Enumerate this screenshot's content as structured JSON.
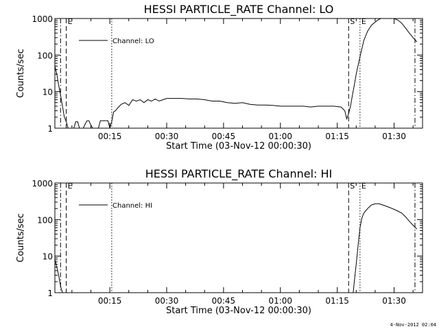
{
  "footer": {
    "timestamp": "4-Nov-2012 02:04"
  },
  "chart_data": [
    {
      "type": "line",
      "title": "HESSI PARTICLE_RATE Channel: LO",
      "xlabel": "Start Time (03-Nov-12 00:00:30)",
      "ylabel": "Counts/sec",
      "yscale": "log",
      "xlim": [
        0.5,
        97.5
      ],
      "ylim": [
        1,
        1000
      ],
      "x_ticks": [
        15,
        30,
        45,
        60,
        75,
        90
      ],
      "x_tick_labels": [
        "00:15",
        "00:30",
        "00:45",
        "01:00",
        "01:15",
        "01:30"
      ],
      "y_ticks": [
        1,
        10,
        100,
        1000
      ],
      "y_tick_labels": [
        "1",
        "10",
        "100",
        "1000"
      ],
      "legend": {
        "entries": [
          "Channel: LO"
        ],
        "position": "top-left"
      },
      "markers": [
        {
          "x": 2.0,
          "style": "dashdot",
          "label": ""
        },
        {
          "x": 3.5,
          "style": "dashed",
          "label": "E"
        },
        {
          "x": 15.5,
          "style": "dotted",
          "label": ""
        },
        {
          "x": 78.0,
          "style": "dashed",
          "label": "S"
        },
        {
          "x": 81.0,
          "style": "dotted",
          "label": "E"
        },
        {
          "x": 95.5,
          "style": "dashdot",
          "label": ""
        }
      ],
      "series": [
        {
          "name": "Channel: LO",
          "x": [
            0.5,
            1.0,
            1.5,
            2.0,
            2.5,
            3.0,
            3.5,
            4.0,
            4.5,
            5.0,
            5.5,
            6.0,
            6.5,
            7.0,
            7.5,
            8.0,
            8.5,
            9.0,
            9.5,
            10.0,
            10.5,
            11.0,
            11.5,
            12.0,
            12.5,
            13.0,
            13.5,
            14.0,
            14.5,
            15.0,
            15.5,
            16.0,
            16.5,
            17.0,
            18.0,
            19.0,
            20.0,
            21.0,
            22.0,
            23.0,
            24.0,
            25.0,
            26.0,
            27.0,
            28.0,
            29.0,
            30.0,
            32.0,
            34.0,
            36.0,
            38.0,
            40.0,
            42.0,
            44.0,
            46.0,
            48.0,
            50.0,
            52.0,
            54.0,
            56.0,
            58.0,
            60.0,
            62.0,
            64.0,
            66.0,
            68.0,
            70.0,
            72.0,
            74.0,
            76.0,
            77.0,
            77.5,
            78.0,
            78.5,
            79.0,
            79.5,
            80.0,
            81.0,
            82.0,
            83.0,
            84.0,
            85.0,
            86.0,
            87.0,
            88.0,
            89.0,
            90.0,
            91.0,
            92.0,
            93.0,
            94.0,
            95.0,
            96.0
          ],
          "values": [
            50,
            30,
            15,
            8,
            4,
            2,
            1.5,
            1,
            0.8,
            0.8,
            1,
            1.5,
            1.5,
            1,
            0.8,
            1,
            1.3,
            1.6,
            1.6,
            1.2,
            1,
            0.8,
            1,
            1,
            1.6,
            1.6,
            1.6,
            1.6,
            1.6,
            1,
            1.5,
            2.8,
            3,
            3.5,
            4.5,
            5,
            4.2,
            6,
            5.5,
            6,
            5,
            6,
            5.5,
            6.3,
            5.5,
            6,
            6.5,
            6.5,
            6.5,
            6.3,
            6.3,
            6,
            5.5,
            5.5,
            5,
            4.8,
            5,
            4.5,
            4.3,
            4.3,
            4.2,
            4,
            4,
            4,
            4,
            3.8,
            4,
            4,
            4,
            3.8,
            3,
            1.8,
            2.5,
            4,
            8,
            15,
            30,
            90,
            250,
            450,
            650,
            800,
            950,
            1050,
            1080,
            1050,
            1000,
            900,
            750,
            550,
            400,
            300,
            230
          ]
        }
      ]
    },
    {
      "type": "line",
      "title": "HESSI PARTICLE_RATE Channel: HI",
      "xlabel": "Start Time (03-Nov-12 00:00:30)",
      "ylabel": "Counts/sec",
      "yscale": "log",
      "xlim": [
        0.5,
        97.5
      ],
      "ylim": [
        1,
        1000
      ],
      "x_ticks": [
        15,
        30,
        45,
        60,
        75,
        90
      ],
      "x_tick_labels": [
        "00:15",
        "00:30",
        "00:45",
        "01:00",
        "01:15",
        "01:30"
      ],
      "y_ticks": [
        1,
        10,
        100,
        1000
      ],
      "y_tick_labels": [
        "1",
        "10",
        "100",
        "1000"
      ],
      "legend": {
        "entries": [
          "Channel: HI"
        ],
        "position": "top-left"
      },
      "markers": [
        {
          "x": 2.0,
          "style": "dashdot",
          "label": ""
        },
        {
          "x": 3.5,
          "style": "dashed",
          "label": "E"
        },
        {
          "x": 15.5,
          "style": "dotted",
          "label": ""
        },
        {
          "x": 78.0,
          "style": "dashed",
          "label": "S"
        },
        {
          "x": 81.0,
          "style": "dotted",
          "label": "E"
        },
        {
          "x": 95.5,
          "style": "dashdot",
          "label": ""
        }
      ],
      "series": [
        {
          "name": "Channel: HI",
          "x": [
            0.5,
            1.0,
            1.5,
            2.0,
            2.5,
            79.2,
            79.5,
            80.0,
            80.5,
            81.0,
            81.5,
            82.0,
            83.0,
            84.0,
            85.0,
            86.0,
            87.0,
            88.0,
            89.0,
            90.0,
            91.0,
            92.0,
            93.0,
            94.0,
            95.0,
            96.0
          ],
          "values": [
            8,
            5,
            3,
            1.5,
            1,
            1,
            2,
            6,
            20,
            60,
            110,
            150,
            200,
            250,
            270,
            270,
            250,
            230,
            210,
            190,
            170,
            150,
            120,
            90,
            70,
            55
          ]
        }
      ]
    }
  ]
}
